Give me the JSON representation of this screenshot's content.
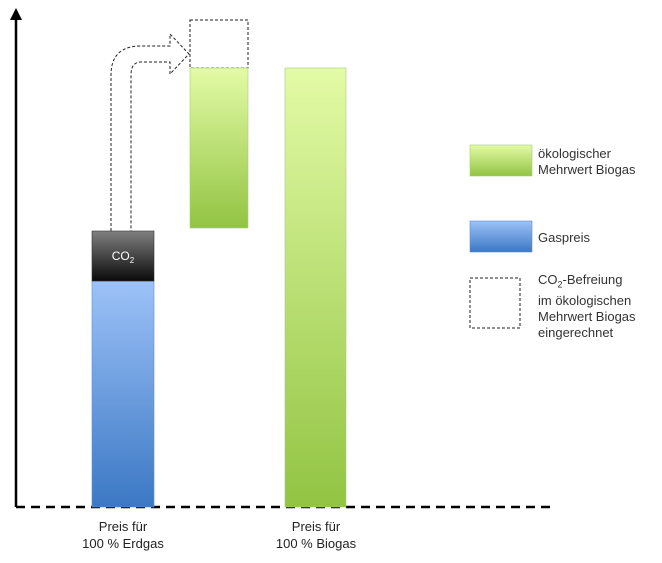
{
  "diagram": {
    "co2_block": {
      "base": "CO",
      "subscript": "2"
    },
    "x_labels": [
      {
        "line1": "Preis für",
        "line2": "100 % Erdgas"
      },
      {
        "line1": "Preis für",
        "line2": "100 % Biogas"
      }
    ],
    "legend": [
      {
        "key": "green",
        "lines": [
          "ökologischer",
          "Mehrwert Biogas"
        ]
      },
      {
        "key": "blue",
        "lines": [
          "Gaspreis"
        ]
      },
      {
        "key": "dashed",
        "prefix": "CO",
        "subscript": "2",
        "first_suffix": "-Befreiung",
        "lines_after": [
          "im ökologischen",
          "Mehrwert Biogas",
          "eingerechnet"
        ]
      }
    ],
    "colors": {
      "green_top": "#e3fba6",
      "green_bottom": "#92c443",
      "blue_top": "#9dc2f8",
      "blue_bottom": "#3b78c4",
      "co2_top": "#808080",
      "co2_bottom": "#0a0a0a"
    }
  }
}
